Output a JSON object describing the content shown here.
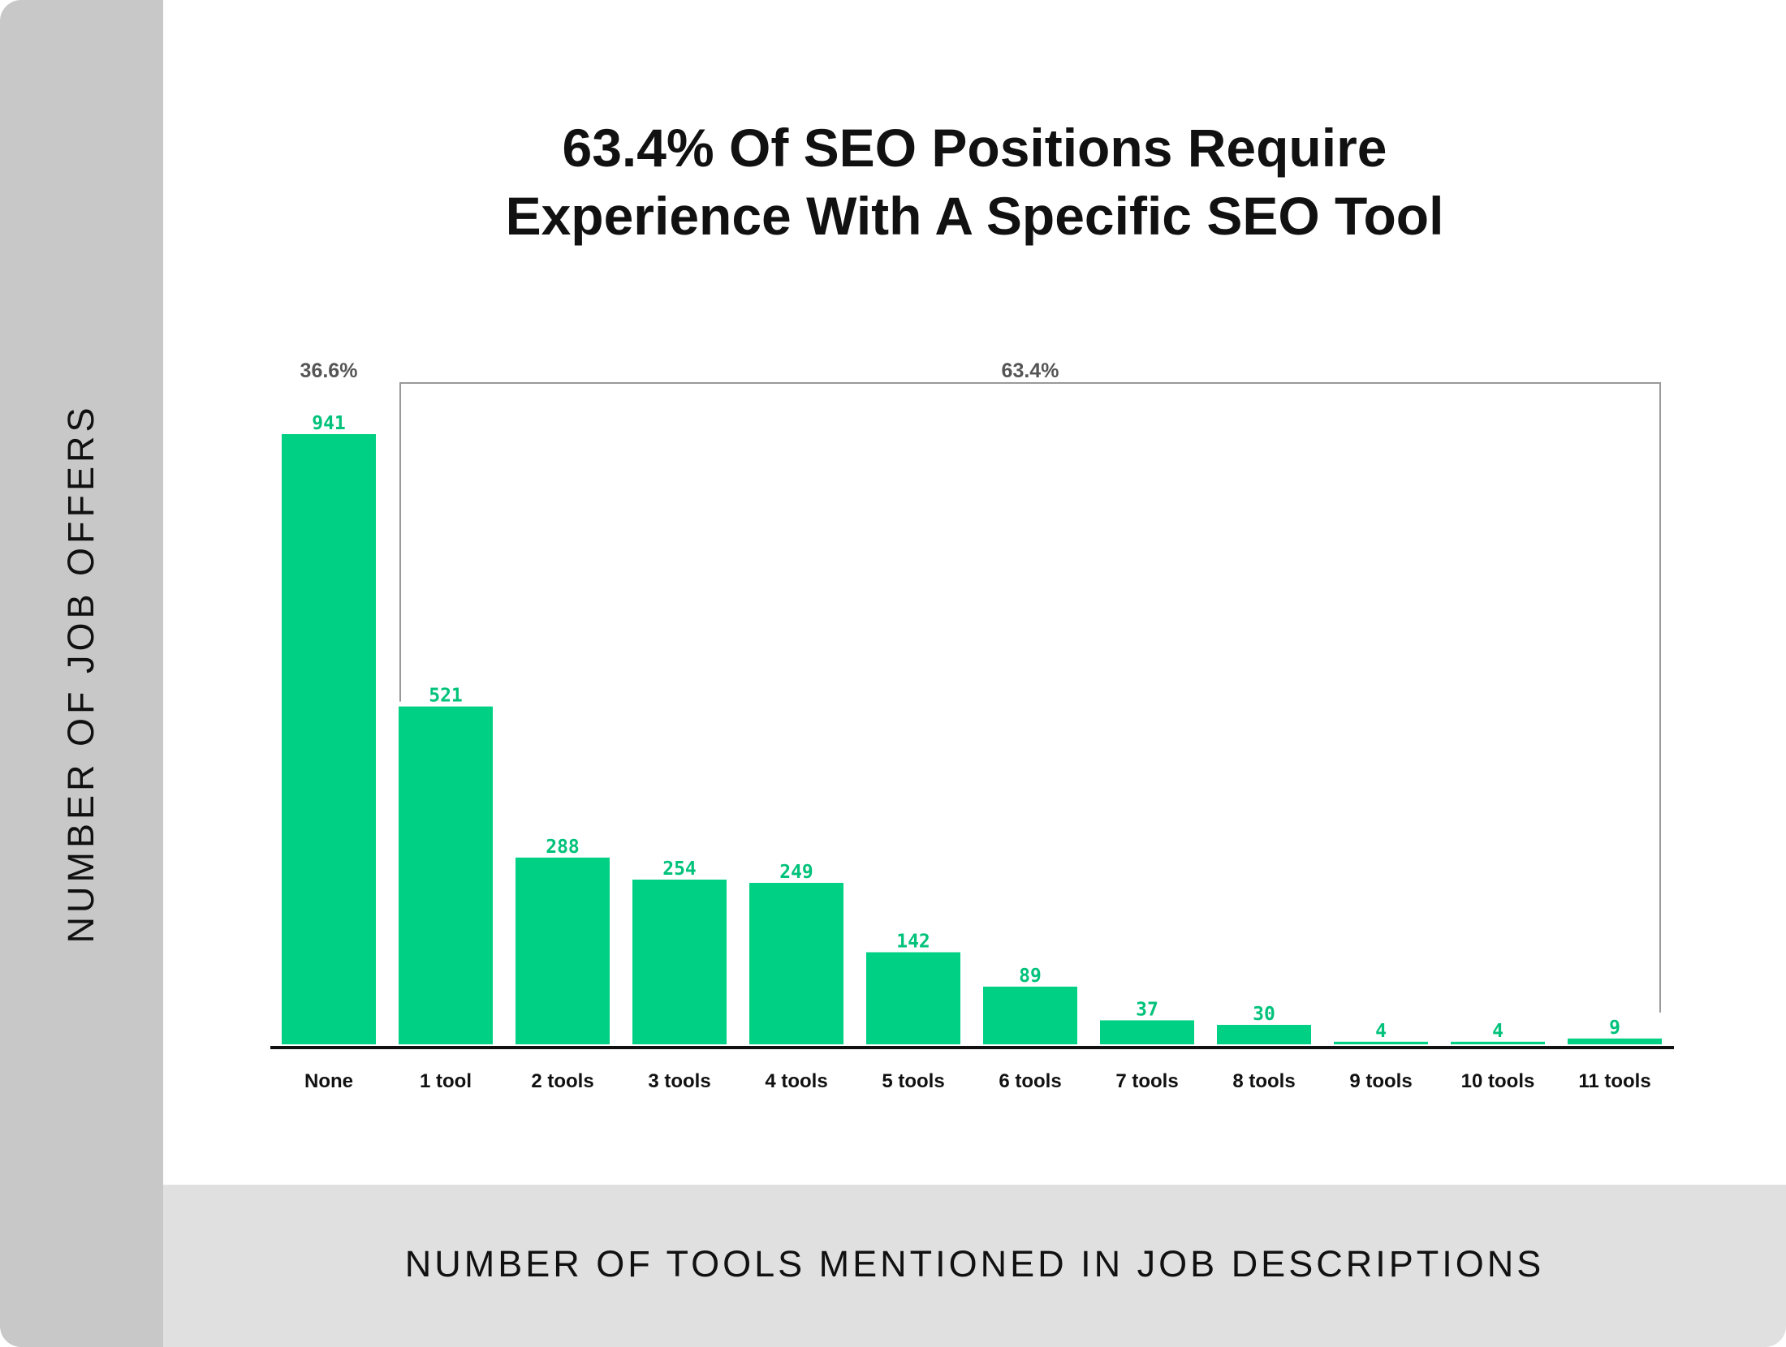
{
  "chart_data": {
    "type": "bar",
    "title_line1": "63.4% Of SEO Positions Require",
    "title_line2": "Experience With A Specific SEO Tool",
    "xlabel": "NUMBER OF TOOLS MENTIONED IN JOB DESCRIPTIONS",
    "ylabel": "NUMBER OF JOB OFFERS",
    "categories": [
      "None",
      "1 tool",
      "2 tools",
      "3 tools",
      "4 tools",
      "5 tools",
      "6 tools",
      "7 tools",
      "8 tools",
      "9 tools",
      "10 tools",
      "11 tools"
    ],
    "values": [
      941,
      521,
      288,
      254,
      249,
      142,
      89,
      37,
      30,
      4,
      4,
      9
    ],
    "ylim": [
      0,
      941
    ],
    "grid": false,
    "annotations": [
      {
        "text": "36.6%",
        "spans": [
          "None"
        ]
      },
      {
        "text": "63.4%",
        "spans": [
          "1 tool",
          "11 tools"
        ]
      }
    ],
    "colors": {
      "bar": "#00d084",
      "value_label": "#00c27a",
      "axis": "#111111",
      "bracket": "#999999",
      "annotation": "#555555"
    }
  }
}
